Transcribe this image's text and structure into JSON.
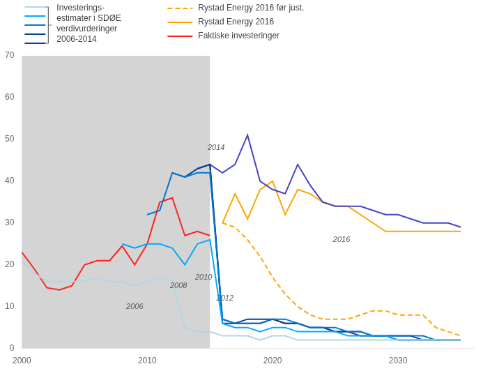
{
  "chart_data": {
    "type": "line",
    "xlim": [
      2000,
      2036
    ],
    "ylim": [
      0,
      70
    ],
    "xticks": [
      2000,
      2010,
      2020,
      2030
    ],
    "yticks": [
      0,
      10,
      20,
      30,
      40,
      50,
      60,
      70
    ],
    "grid": false,
    "legend": "top",
    "spans": [
      {
        "x": [
          2000,
          2015
        ],
        "color": "#d4d4d4"
      }
    ],
    "series": [
      {
        "name": null,
        "color": "#add8e6",
        "line_style": "solid",
        "x": [
          2000,
          2001,
          2002,
          2003,
          2004,
          2005,
          2006,
          2007,
          2008,
          2009,
          2010,
          2011,
          2012,
          2013,
          2014,
          2015,
          2016,
          2017,
          2018,
          2019,
          2020,
          2021,
          2022,
          2023,
          2024,
          2025,
          2026,
          2027,
          2028,
          2029,
          2030,
          2031,
          2032,
          2033,
          2034,
          2035
        ],
        "values": [
          21,
          18,
          16,
          16,
          16,
          16,
          17,
          16,
          16,
          15,
          16,
          17,
          16,
          5,
          4,
          4,
          3,
          3,
          3,
          2,
          3,
          3,
          2,
          2,
          2,
          2,
          2,
          2,
          2,
          2,
          2,
          2,
          2,
          2,
          2,
          2
        ]
      },
      {
        "name": null,
        "color": "#00aaff",
        "line_style": "solid",
        "x": [
          2008,
          2009,
          2010,
          2011,
          2012,
          2013,
          2014,
          2015,
          2016,
          2017,
          2018,
          2019,
          2020,
          2021,
          2022,
          2023,
          2024,
          2025,
          2026,
          2027,
          2028,
          2029,
          2030,
          2031,
          2032,
          2033,
          2034,
          2035
        ],
        "values": [
          25,
          24,
          25,
          25,
          24,
          20,
          25,
          26,
          6,
          5,
          5,
          4,
          5,
          5,
          4,
          4,
          4,
          4,
          3,
          3,
          3,
          3,
          2,
          2,
          2,
          2,
          2,
          2
        ]
      },
      {
        "name": null,
        "color": "#0077cc",
        "line_style": "solid",
        "x": [
          2010,
          2011,
          2012,
          2013,
          2014,
          2015,
          2016,
          2017,
          2018,
          2019,
          2020,
          2021,
          2022,
          2023,
          2024,
          2025,
          2026,
          2027,
          2028,
          2029,
          2030,
          2031,
          2032,
          2033,
          2034,
          2035
        ],
        "values": [
          32,
          33,
          42,
          41,
          42,
          42,
          7,
          6,
          6,
          6,
          7,
          7,
          6,
          5,
          5,
          5,
          4,
          4,
          3,
          3,
          3,
          3,
          3,
          2,
          2,
          2
        ]
      },
      {
        "name": null,
        "color": "#004499",
        "line_style": "solid",
        "x": [
          2012,
          2013,
          2014,
          2015,
          2016,
          2017,
          2018,
          2019,
          2020,
          2021,
          2022,
          2023,
          2024,
          2025,
          2026,
          2027,
          2028,
          2029,
          2030,
          2031,
          2032,
          2033,
          2034,
          2035
        ],
        "values": [
          42,
          41,
          43,
          44,
          7,
          6,
          7,
          7,
          7,
          6,
          6,
          5,
          5,
          4,
          4,
          4,
          3,
          3,
          3,
          3,
          2,
          2,
          2,
          2
        ]
      },
      {
        "name": null,
        "color": "#30309a",
        "line_style": "solid",
        "x": [
          2014,
          2015,
          2016,
          2017,
          2018,
          2019,
          2020,
          2021,
          2022,
          2023,
          2024,
          2025,
          2026,
          2027,
          2028,
          2029,
          2030,
          2031,
          2032,
          2033,
          2034,
          2035
        ],
        "values": [
          43,
          44,
          6,
          6,
          6,
          6,
          7,
          6,
          6,
          5,
          5,
          4,
          4,
          3,
          3,
          3,
          2,
          2,
          2,
          2,
          2,
          2
        ]
      },
      {
        "name": "Faktiske investeringer",
        "color": "#ff2020",
        "line_style": "solid",
        "x": [
          2000,
          2001,
          2002,
          2003,
          2004,
          2005,
          2006,
          2007,
          2008,
          2009,
          2010,
          2011,
          2012,
          2013,
          2014,
          2015
        ],
        "values": [
          23,
          19,
          14.5,
          14,
          15,
          20,
          21,
          21,
          24.5,
          20,
          25,
          35,
          36,
          27,
          28,
          27
        ]
      },
      {
        "name": null,
        "color": "#4444cc",
        "line_style": "solid",
        "x": [
          2014,
          2015,
          2016,
          2017,
          2018,
          2019,
          2020,
          2021,
          2022,
          2023,
          2024,
          2025,
          2026,
          2027,
          2028,
          2029,
          2030,
          2031,
          2032,
          2033,
          2034,
          2035
        ],
        "values": [
          43,
          44,
          42,
          44,
          51,
          40,
          38,
          37,
          44,
          39,
          35,
          34,
          34,
          34,
          33,
          32,
          32,
          31,
          30,
          30,
          30,
          29
        ]
      },
      {
        "name": "Rystad Energy 2016",
        "color": "#ffa500",
        "line_style": "solid",
        "x": [
          2016,
          2017,
          2018,
          2019,
          2020,
          2021,
          2022,
          2023,
          2024,
          2025,
          2026,
          2027,
          2028,
          2029,
          2030,
          2031,
          2032,
          2033,
          2034,
          2035
        ],
        "values": [
          30,
          37,
          31,
          38,
          40,
          32,
          38,
          37,
          35,
          34,
          34,
          32,
          30,
          28,
          28,
          28,
          28,
          28,
          28,
          28
        ]
      },
      {
        "name": "Rystad Energy 2016 før just.",
        "color": "#ffa500",
        "line_style": "dashed",
        "x": [
          2016,
          2017,
          2018,
          2019,
          2020,
          2021,
          2022,
          2023,
          2024,
          2025,
          2026,
          2027,
          2028,
          2029,
          2030,
          2031,
          2032,
          2033,
          2034,
          2035
        ],
        "values": [
          30,
          29,
          26,
          22,
          17,
          13,
          10,
          8,
          7,
          7,
          7,
          8,
          9,
          9,
          8,
          8,
          8,
          5,
          4,
          3
        ]
      }
    ],
    "legend_group": {
      "label": [
        "Investerings-",
        "estimater i SDØE",
        "verdivurderinger",
        "2006-2014"
      ],
      "colors": [
        "#add8e6",
        "#00aaff",
        "#0077cc",
        "#004499",
        "#30309a"
      ]
    },
    "annotations": [
      {
        "text": "2006",
        "x": 2009.0,
        "y": 10
      },
      {
        "text": "2008",
        "x": 2012.5,
        "y": 15
      },
      {
        "text": "2010",
        "x": 2014.5,
        "y": 17
      },
      {
        "text": "2012",
        "x": 2016.2,
        "y": 12
      },
      {
        "text": "2014",
        "x": 2015.5,
        "y": 48
      },
      {
        "text": "2016",
        "x": 2025.5,
        "y": 26
      }
    ]
  }
}
